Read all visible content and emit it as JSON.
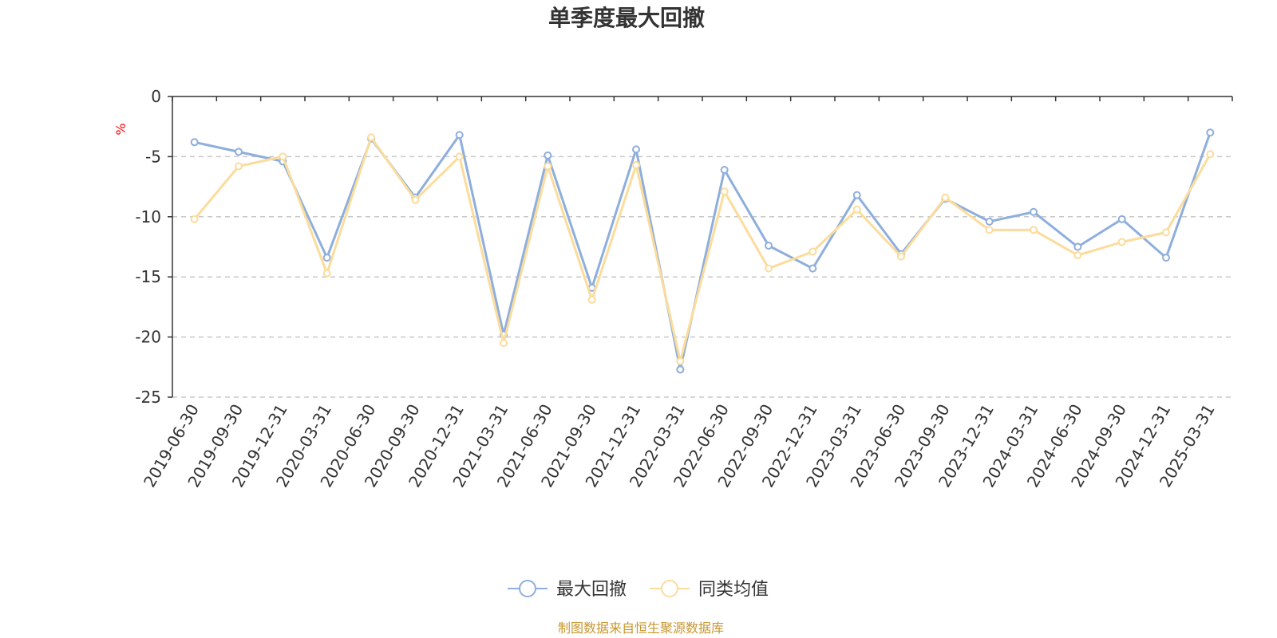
{
  "chart_data": {
    "type": "line",
    "title": "单季度最大回撤",
    "ylabel": "%",
    "xlabel": "",
    "ylim": [
      -25,
      0
    ],
    "yticks": [
      0,
      -5,
      -10,
      -15,
      -20,
      -25
    ],
    "grid": true,
    "legend_position": "bottom",
    "categories": [
      "2019-06-30",
      "2019-09-30",
      "2019-12-31",
      "2020-03-31",
      "2020-06-30",
      "2020-09-30",
      "2020-12-31",
      "2021-03-31",
      "2021-06-30",
      "2021-09-30",
      "2021-12-31",
      "2022-03-31",
      "2022-06-30",
      "2022-09-30",
      "2022-12-31",
      "2023-03-31",
      "2023-06-30",
      "2023-09-30",
      "2023-12-31",
      "2024-03-31",
      "2024-06-30",
      "2024-09-30",
      "2024-12-31",
      "2025-03-31"
    ],
    "series": [
      {
        "name": "最大回撤",
        "color": "#8eaedc",
        "values": [
          -3.8,
          -4.6,
          -5.4,
          -13.4,
          -3.5,
          -8.4,
          -3.2,
          -19.8,
          -4.9,
          -15.9,
          -4.4,
          -22.7,
          -6.1,
          -12.4,
          -14.3,
          -8.2,
          -13.1,
          -8.5,
          -10.4,
          -9.6,
          -12.5,
          -10.2,
          -13.4,
          -3.0
        ]
      },
      {
        "name": "同类均值",
        "color": "#fbdc9c",
        "values": [
          -10.2,
          -5.8,
          -5.0,
          -14.7,
          -3.4,
          -8.6,
          -5.0,
          -20.5,
          -5.8,
          -16.9,
          -5.7,
          -22.0,
          -7.9,
          -14.3,
          -12.9,
          -9.4,
          -13.3,
          -8.4,
          -11.1,
          -11.1,
          -13.2,
          -12.1,
          -11.3,
          -4.8
        ]
      }
    ]
  },
  "footer": {
    "source": "制图数据来自恒生聚源数据库"
  }
}
